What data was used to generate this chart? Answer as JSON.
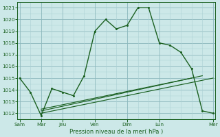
{
  "title": "Pression niveau de la mer( hPa )",
  "bg_color": "#cce8e8",
  "grid_major_color": "#8cb8bc",
  "grid_minor_color": "#aad0d4",
  "line_color": "#1a6020",
  "ylim": [
    1011.5,
    1021.5
  ],
  "yticks": [
    1012,
    1013,
    1014,
    1015,
    1016,
    1017,
    1018,
    1019,
    1020,
    1021
  ],
  "xtick_labels": [
    "Sam",
    "Mar",
    "Jeu",
    "Ven",
    "Dim",
    "Lun",
    "Mer"
  ],
  "xtick_positions": [
    0,
    2,
    4,
    7,
    10,
    13,
    18
  ],
  "xlim": [
    -0.2,
    18.2
  ],
  "main_x": [
    0,
    1,
    2,
    3,
    4,
    5,
    6,
    7,
    8,
    9,
    10,
    11,
    12,
    13,
    14,
    15,
    16,
    17,
    18
  ],
  "main_y": [
    1015.0,
    1013.8,
    1011.8,
    1014.1,
    1013.8,
    1013.5,
    1015.2,
    1019.0,
    1020.0,
    1019.2,
    1019.5,
    1021.0,
    1021.0,
    1018.0,
    1017.8,
    1017.2,
    1015.8,
    1012.2,
    1012.0
  ],
  "trend1_x": [
    2,
    18
  ],
  "trend1_y": [
    1012.0,
    1015.0
  ],
  "trend2_x": [
    2,
    17
  ],
  "trend2_y": [
    1012.2,
    1015.2
  ],
  "trend3_x": [
    2,
    16
  ],
  "trend3_y": [
    1012.35,
    1015.0
  ]
}
